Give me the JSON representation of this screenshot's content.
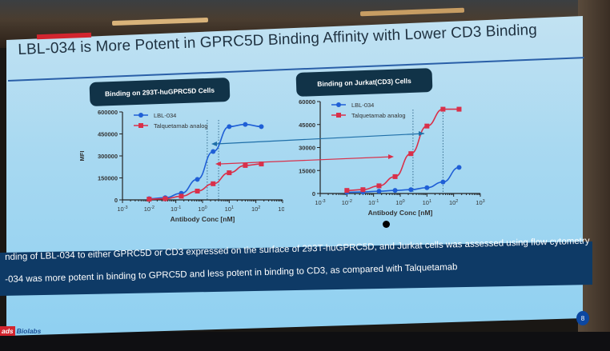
{
  "slide": {
    "title": "LBL-034 is More Potent in GPRC5D Binding Affinity with Lower CD3 Binding",
    "page_number": "8",
    "logo": {
      "left": "ads",
      "right": "Biolabs"
    },
    "summary": [
      "nding of LBL-034 to either GPRC5D or CD3 expressed on the surface of 293T-huGPRC5D, and Jurkat cells was assessed using flow cytometry",
      "-034 was more potent in binding to GPRC5D and less potent in binding to CD3, as compared with Talquetamab"
    ],
    "colors": {
      "lbl034": "#1f5fd6",
      "talquetamab": "#d9304a",
      "pill_bg": "#113348",
      "summary_bg": "#0e3a66",
      "accent_red": "#d2252f"
    }
  },
  "chart_data": [
    {
      "type": "line",
      "title": "Binding on 293T-huGPRC5D Cells",
      "xlabel": "Antibody Conc [nM]",
      "ylabel": "MFI",
      "xscale": "log",
      "xlim": [
        0.001,
        1000
      ],
      "ylim": [
        0,
        600000
      ],
      "xticks": [
        "10-3",
        "10-2",
        "10-1",
        "100",
        "101",
        "102",
        "103"
      ],
      "yticks": [
        "0",
        "150000",
        "300000",
        "450000",
        "600000"
      ],
      "legend": [
        "LBL-034",
        "Talquetamab analog"
      ],
      "legend_position": "upper-left",
      "grid": false,
      "series": [
        {
          "name": "LBL-034",
          "color": "#1f5fd6",
          "marker": "circle",
          "x": [
            0.01,
            0.04,
            0.16,
            0.64,
            2.5,
            10,
            40,
            160
          ],
          "y": [
            8000,
            15000,
            45000,
            140000,
            330000,
            500000,
            515000,
            500000
          ]
        },
        {
          "name": "Talquetamab analog",
          "color": "#d9304a",
          "marker": "square",
          "x": [
            0.01,
            0.04,
            0.16,
            0.64,
            2.5,
            10,
            40,
            160
          ],
          "y": [
            5000,
            8000,
            25000,
            60000,
            110000,
            185000,
            235000,
            245000
          ]
        }
      ],
      "annotations": [
        "dotted EC50 lines near 1.5 nM and 4 nM"
      ]
    },
    {
      "type": "line",
      "title": "Binding on Jurkat(CD3) Cells",
      "xlabel": "Antibody Conc [nM]",
      "ylabel": "MFI",
      "xscale": "log",
      "xlim": [
        0.001,
        1000
      ],
      "ylim": [
        0,
        60000
      ],
      "xticks": [
        "10-3",
        "10-2",
        "10-1",
        "100",
        "101",
        "102",
        "103"
      ],
      "yticks": [
        "0",
        "15000",
        "30000",
        "45000",
        "60000"
      ],
      "legend": [
        "LBL-034",
        "Talquetamab analog"
      ],
      "legend_position": "upper-left",
      "grid": false,
      "series": [
        {
          "name": "LBL-034",
          "color": "#1f5fd6",
          "marker": "circle",
          "x": [
            0.01,
            0.04,
            0.16,
            0.64,
            2.5,
            10,
            40,
            160
          ],
          "y": [
            800,
            1000,
            1500,
            2000,
            2500,
            3800,
            7500,
            17000
          ]
        },
        {
          "name": "Talquetamab analog",
          "color": "#d9304a",
          "marker": "square",
          "x": [
            0.01,
            0.04,
            0.16,
            0.64,
            2.5,
            10,
            40,
            160
          ],
          "y": [
            2000,
            2500,
            5000,
            11000,
            26000,
            44000,
            55000,
            55000
          ]
        }
      ],
      "annotations": [
        "dotted EC50 lines near 3 nM and 40 nM"
      ]
    }
  ]
}
